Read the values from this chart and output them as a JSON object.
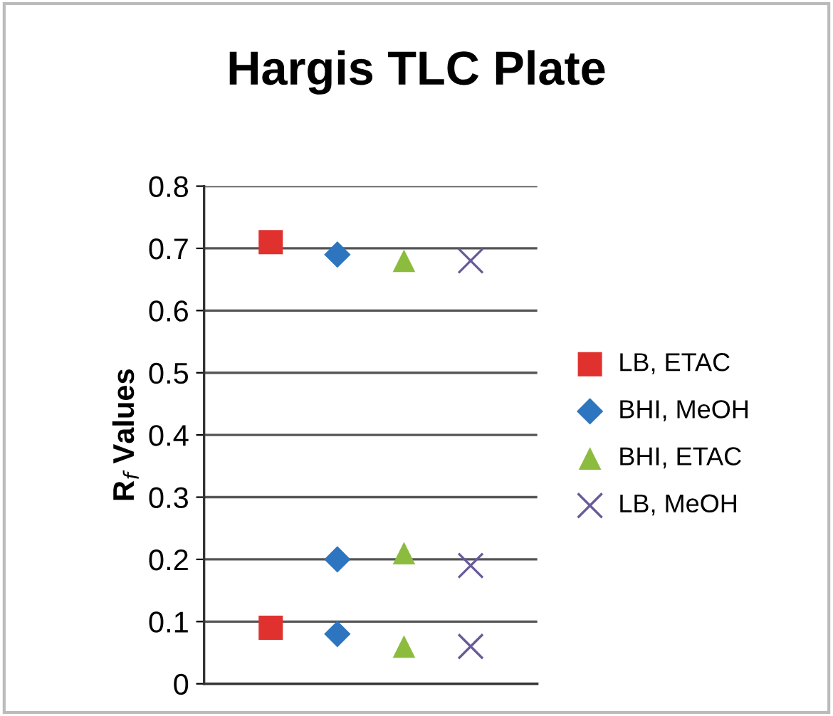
{
  "chart_data": {
    "type": "scatter",
    "title": "Hargis TLC Plate",
    "ylabel": "R$_{f}$ Values",
    "categories": [
      null,
      null,
      null,
      null
    ],
    "series": [
      {
        "name": "LB, ETAC",
        "color": "#e0312f",
        "marker": "square",
        "values": [
          0.71,
          null,
          null,
          null
        ]
      },
      {
        "color": "#e0312f",
        "marker": "square",
        "values": [
          0.09,
          null,
          null,
          null
        ]
      },
      {
        "name": "BHI, MeOH",
        "color": "#2e75c0",
        "marker": "diamond",
        "values": [
          null,
          0.69,
          null,
          null
        ]
      },
      {
        "color": "#2e75c0",
        "marker": "diamond",
        "values": [
          null,
          0.2,
          null,
          null
        ]
      },
      {
        "color": "#2e75c0",
        "marker": "diamond",
        "values": [
          null,
          0.08,
          null,
          null
        ]
      },
      {
        "name": "BHI, ETAC",
        "color": "#8cbc3e",
        "marker": "triangle",
        "values": [
          null,
          null,
          0.68,
          null
        ]
      },
      {
        "color": "#8cbc3e",
        "marker": "triangle",
        "values": [
          null,
          null,
          0.21,
          null
        ]
      },
      {
        "color": "#8cbc3e",
        "marker": "triangle",
        "values": [
          null,
          null,
          0.06,
          null
        ]
      },
      {
        "name": "LB, MeOH",
        "color": "#6a5a9a",
        "marker": "cross",
        "values": [
          null,
          null,
          null,
          0.68
        ]
      },
      {
        "color": "#6a5a9a",
        "marker": "cross",
        "values": [
          null,
          null,
          null,
          0.19
        ]
      },
      {
        "color": "#6a5a9a",
        "marker": "cross",
        "values": [
          null,
          null,
          null,
          0.06
        ]
      }
    ],
    "ylim": [
      0,
      0.8
    ],
    "yticks": [
      0,
      0.1,
      0.2,
      0.3,
      0.4,
      0.5,
      0.6,
      0.7,
      0.8
    ],
    "tick_labels": "y",
    "grid": "y",
    "legend": "right"
  }
}
